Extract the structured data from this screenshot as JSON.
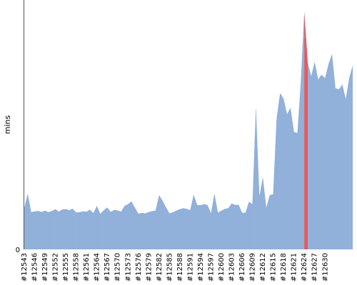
{
  "chart_data": {
    "type": "area",
    "title": "",
    "xlabel": "",
    "ylabel": "mins",
    "ylim": [
      0,
      100
    ],
    "y_ticks": [
      "0"
    ],
    "x_start_build": 12543,
    "x_tick_labels": [
      "#12543",
      "#12546",
      "#12549",
      "#12552",
      "#12555",
      "#12558",
      "#12561",
      "#12564",
      "#12567",
      "#12570",
      "#12573",
      "#12576",
      "#12579",
      "#12582",
      "#12585",
      "#12588",
      "#12591",
      "#12594",
      "#12597",
      "#12600",
      "#12603",
      "#12606",
      "#12609",
      "#12612",
      "#12615",
      "#12618",
      "#12621",
      "#12624",
      "#12627",
      "#12630"
    ],
    "values": [
      16.5,
      22.3,
      14.9,
      15.2,
      15.4,
      15.0,
      15.5,
      14.9,
      15.4,
      16.1,
      15.1,
      16.0,
      16.1,
      15.7,
      16.3,
      14.8,
      14.9,
      15.2,
      15.1,
      15.9,
      14.5,
      17.4,
      14.2,
      15.7,
      16.8,
      15.0,
      15.8,
      15.6,
      15.1,
      17.4,
      18.1,
      19.2,
      16.7,
      14.3,
      14.6,
      14.4,
      15.0,
      15.3,
      15.6,
      21.7,
      19.5,
      16.8,
      14.4,
      14.9,
      15.5,
      16.1,
      16.5,
      16.2,
      15.7,
      21.9,
      17.8,
      17.7,
      18.1,
      17.8,
      14.4,
      22.3,
      14.7,
      15.5,
      16.2,
      16.5,
      18.4,
      17.8,
      17.9,
      14.6,
      14.7,
      19.1,
      18.1,
      56.9,
      21.1,
      28.9,
      16.6,
      21.7,
      22.1,
      52.5,
      62.6,
      60.4,
      54.1,
      56.8,
      47.1,
      46.6,
      67.2,
      95.3,
      74.8,
      69.4,
      75.1,
      68.1,
      70.0,
      68.6,
      74.2,
      78.3,
      64.6,
      64.1,
      66.1,
      60.2,
      68.7,
      73.7
    ],
    "highlight_index": 81,
    "highlight_color": "#e85a5a",
    "fill_color": "#91b0da",
    "grid": false
  }
}
